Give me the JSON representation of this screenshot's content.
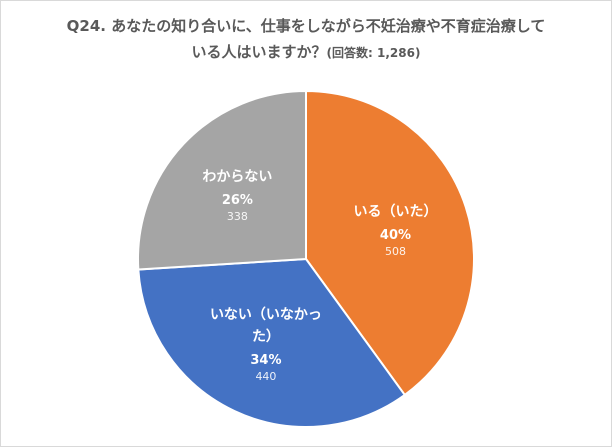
{
  "chart_data": {
    "type": "pie",
    "title": "Q24. あなたの知り合いに、仕事をしながら不妊治療や不育症治療している人はいますか？",
    "subtitle": "(回答数: 1,286)",
    "categories": [
      "いる（いた）",
      "いない（いなかった）",
      "わからない"
    ],
    "values": [
      40,
      34,
      26
    ],
    "value_labels": [
      "40%",
      "34%",
      "26%"
    ],
    "counts": [
      508,
      440,
      338
    ],
    "colors": [
      "#ed7d31",
      "#4472c4",
      "#a5a5a5"
    ]
  }
}
